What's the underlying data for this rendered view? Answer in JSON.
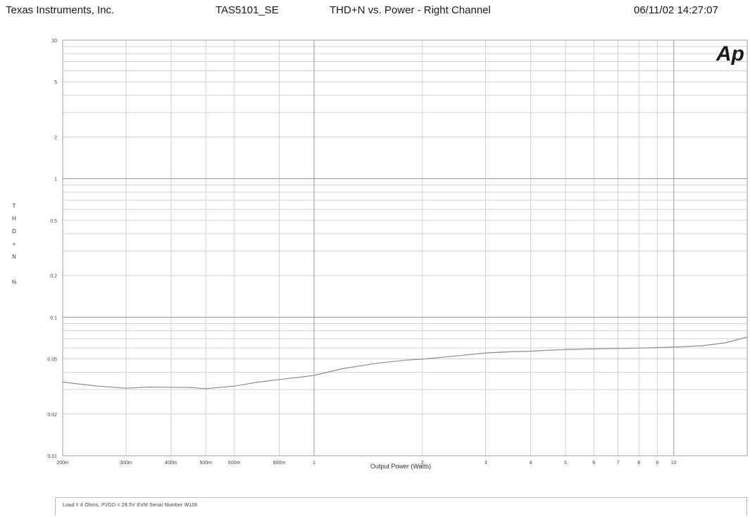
{
  "header": {
    "company": "Texas Instruments, Inc.",
    "model": "TAS5101_SE",
    "title": "THD+N vs. Power - Right Channel",
    "datetime": "06/11/02 14:27:07"
  },
  "logo_text": "Ap",
  "footer_note": "Load = 4 Ohms,  PVDD = 28.5V     EVM Serial Number W106",
  "chart_data": {
    "type": "line",
    "title": "THD+N vs. Power - Right Channel",
    "xlabel": "Output Power (Watts)",
    "ylabel_chars": [
      "T",
      "H",
      "D",
      "+",
      "N",
      "",
      "%"
    ],
    "x_scale": "log",
    "y_scale": "log",
    "xlim": [
      0.2,
      16
    ],
    "ylim": [
      0.01,
      10
    ],
    "grid": true,
    "x_ticks": [
      {
        "value": 0.2,
        "label": "200m"
      },
      {
        "value": 0.3,
        "label": "300m"
      },
      {
        "value": 0.4,
        "label": "400m"
      },
      {
        "value": 0.5,
        "label": "500m"
      },
      {
        "value": 0.6,
        "label": "600m"
      },
      {
        "value": 0.8,
        "label": "800m"
      },
      {
        "value": 1,
        "label": "1"
      },
      {
        "value": 2,
        "label": "2"
      },
      {
        "value": 3,
        "label": "3"
      },
      {
        "value": 4,
        "label": "4"
      },
      {
        "value": 5,
        "label": "5"
      },
      {
        "value": 6,
        "label": "6"
      },
      {
        "value": 7,
        "label": "7"
      },
      {
        "value": 8,
        "label": "8"
      },
      {
        "value": 9,
        "label": "9"
      },
      {
        "value": 10,
        "label": "10"
      }
    ],
    "y_ticks": [
      {
        "value": 10,
        "label": "10"
      },
      {
        "value": 5,
        "label": "5"
      },
      {
        "value": 2,
        "label": "2"
      },
      {
        "value": 1,
        "label": "1"
      },
      {
        "value": 0.5,
        "label": "0.5"
      },
      {
        "value": 0.2,
        "label": "0.2"
      },
      {
        "value": 0.1,
        "label": "0.1"
      },
      {
        "value": 0.05,
        "label": "0.05"
      },
      {
        "value": 0.02,
        "label": "0.02"
      },
      {
        "value": 0.01,
        "label": "0.01"
      }
    ],
    "series": [
      {
        "color": "#8c8c8c",
        "x": [
          0.2,
          0.25,
          0.3,
          0.35,
          0.4,
          0.45,
          0.5,
          0.55,
          0.6,
          0.7,
          0.8,
          0.9,
          1.0,
          1.2,
          1.5,
          1.8,
          2.0,
          2.5,
          3.0,
          3.5,
          4.0,
          4.5,
          5.0,
          6.0,
          7.0,
          8.0,
          9.0,
          10.0,
          12.0,
          14.0,
          16.0
        ],
        "y": [
          0.034,
          0.0318,
          0.0307,
          0.0313,
          0.0312,
          0.0311,
          0.0305,
          0.0312,
          0.0318,
          0.034,
          0.0355,
          0.0367,
          0.038,
          0.0425,
          0.0465,
          0.049,
          0.0498,
          0.0526,
          0.0552,
          0.0563,
          0.0568,
          0.0578,
          0.0583,
          0.0591,
          0.0594,
          0.0598,
          0.0603,
          0.0609,
          0.0622,
          0.0655,
          0.072
        ]
      }
    ]
  }
}
